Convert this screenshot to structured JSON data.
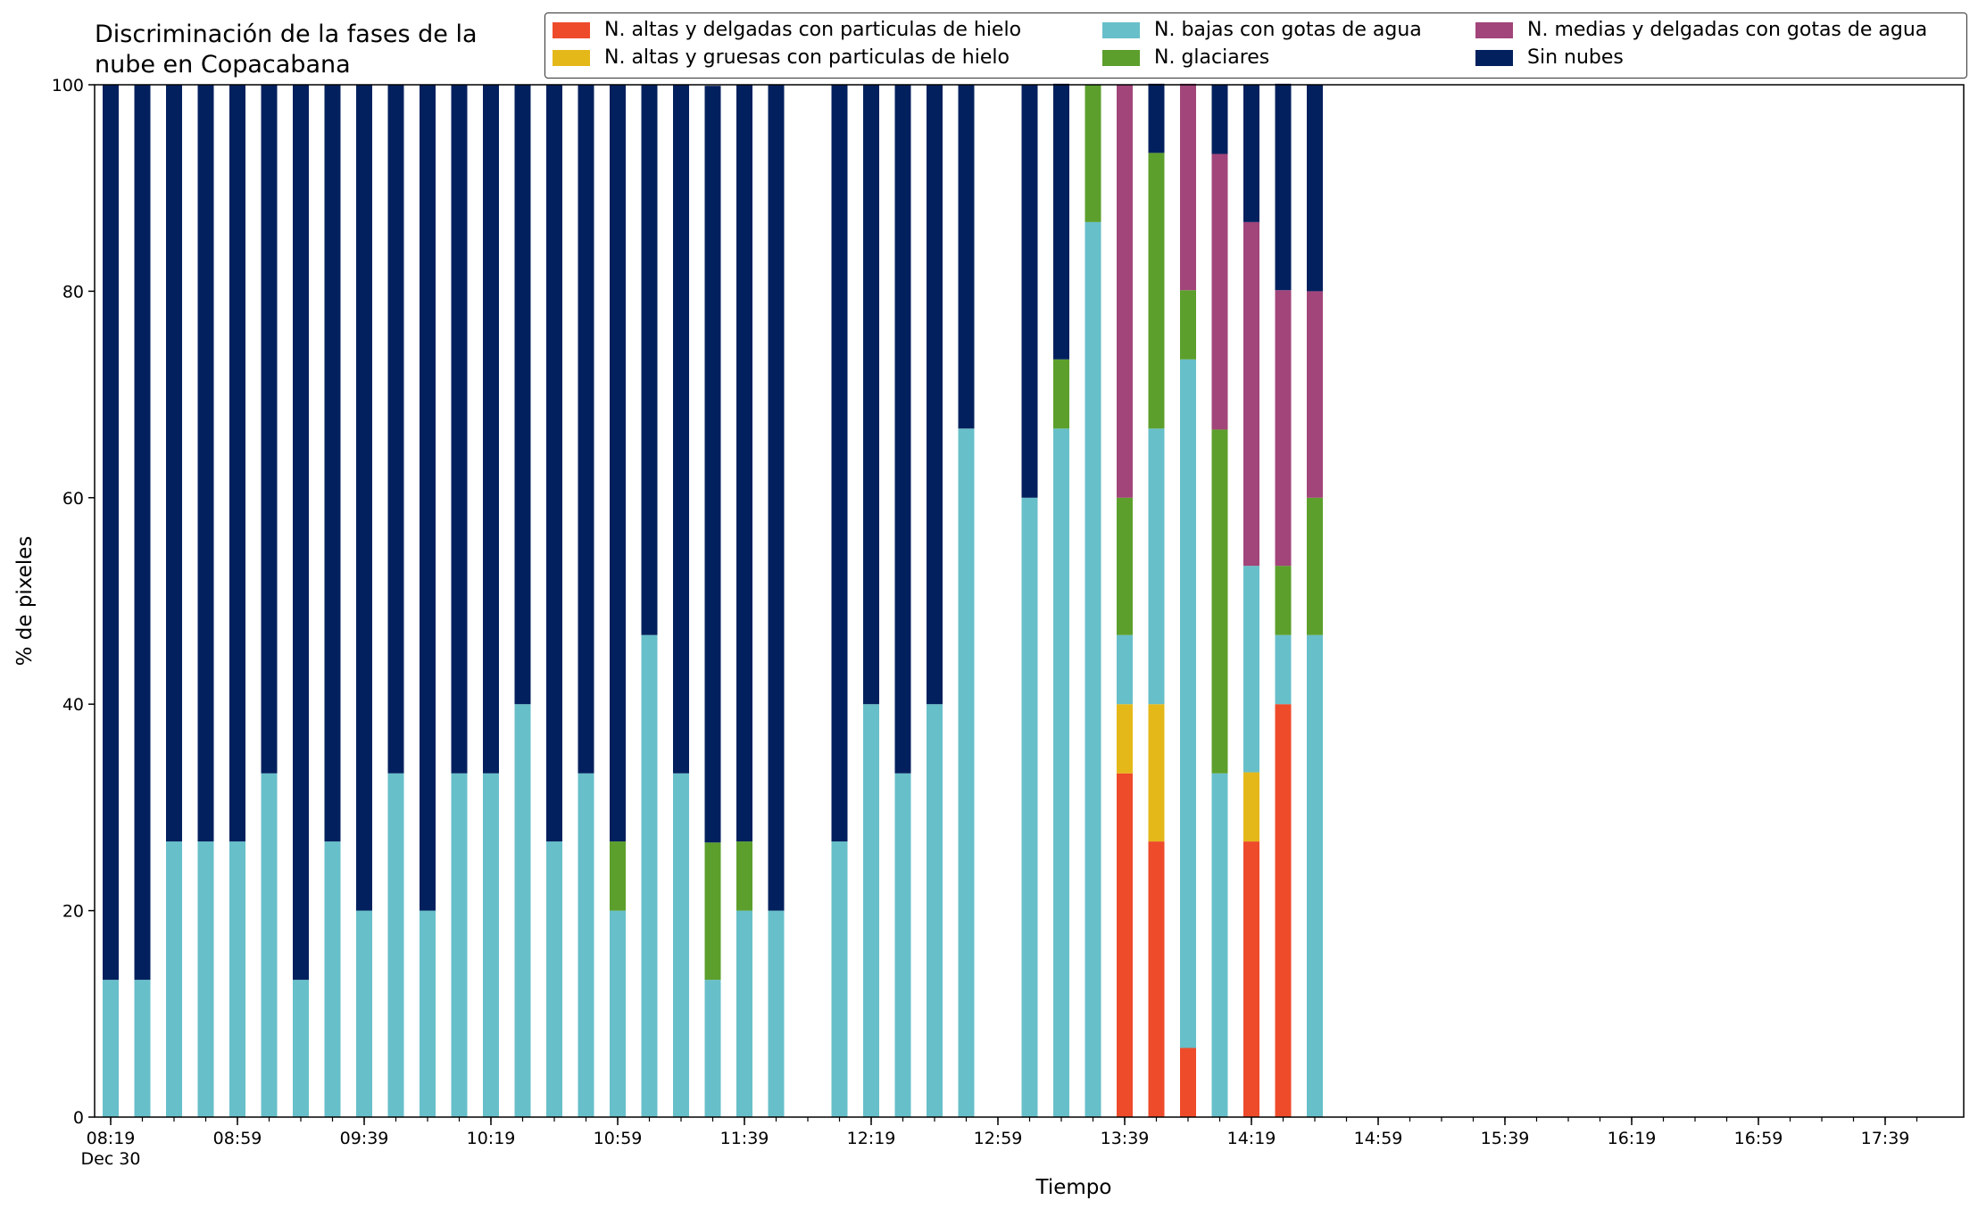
{
  "chart_data": {
    "type": "bar",
    "stacked": true,
    "title": "Discriminación de la fases de la\nnube en Copacabana",
    "xlabel": "Tiempo",
    "ylabel": "% de pixeles",
    "ylim": [
      0,
      100
    ],
    "yticks": [
      0,
      20,
      40,
      60,
      80,
      100
    ],
    "xticks": [
      "08:19\nDec 30",
      "08:59",
      "09:39",
      "10:19",
      "10:59",
      "11:39",
      "12:19",
      "12:59",
      "13:39",
      "14:19",
      "14:59",
      "15:39",
      "16:19",
      "16:59",
      "17:39"
    ],
    "x_interval_minutes": 10,
    "x_start": "08:19",
    "x_end": "17:49",
    "grid": false,
    "legend_position": "top-right",
    "categories": [
      "08:19",
      "08:29",
      "08:39",
      "08:49",
      "08:59",
      "09:09",
      "09:19",
      "09:29",
      "09:39",
      "09:49",
      "09:59",
      "10:09",
      "10:19",
      "10:29",
      "10:39",
      "10:49",
      "10:59",
      "11:09",
      "11:19",
      "11:29",
      "11:39",
      "11:49",
      "11:59",
      "12:09",
      "12:19",
      "12:29",
      "12:39",
      "12:49",
      "12:59",
      "13:09",
      "13:19",
      "13:29",
      "13:39",
      "13:49",
      "13:59",
      "14:09",
      "14:19",
      "14:29",
      "14:39"
    ],
    "series": [
      {
        "name": "N. altas y delgadas con particulas de hielo",
        "color": "#ee4b2b",
        "values": [
          0,
          0,
          0,
          0,
          0,
          0,
          0,
          0,
          0,
          0,
          0,
          0,
          0,
          0,
          0,
          0,
          0,
          0,
          0,
          0,
          0,
          0,
          0,
          0,
          0,
          0,
          0,
          0,
          0,
          0,
          0,
          0,
          33.3,
          26.7,
          6.7,
          0,
          26.7,
          40,
          0
        ]
      },
      {
        "name": "N. altas y gruesas con particulas de hielo",
        "color": "#e5b81a",
        "values": [
          0,
          0,
          0,
          0,
          0,
          0,
          0,
          0,
          0,
          0,
          0,
          0,
          0,
          0,
          0,
          0,
          0,
          0,
          0,
          0,
          0,
          0,
          0,
          0,
          0,
          0,
          0,
          0,
          0,
          0,
          0,
          0,
          6.7,
          13.3,
          0,
          0,
          6.7,
          0,
          0
        ]
      },
      {
        "name": "N. bajas con gotas de agua",
        "color": "#67bfc9",
        "values": [
          13.3,
          13.3,
          26.7,
          26.7,
          26.7,
          33.3,
          13.3,
          26.7,
          20,
          33.3,
          20,
          33.3,
          33.3,
          40,
          26.7,
          33.3,
          20,
          46.7,
          33.3,
          13.3,
          20,
          20,
          null,
          26.7,
          40,
          33.3,
          40,
          66.7,
          null,
          60,
          66.7,
          86.7,
          6.7,
          26.7,
          66.7,
          33.3,
          20,
          6.7,
          46.7
        ]
      },
      {
        "name": "N. glaciares",
        "color": "#5c9f2c",
        "values": [
          0,
          0,
          0,
          0,
          0,
          0,
          0,
          0,
          0,
          0,
          0,
          0,
          0,
          0,
          0,
          0,
          6.7,
          0,
          0,
          13.3,
          6.7,
          0,
          null,
          0,
          0,
          0,
          0,
          0,
          null,
          0,
          6.7,
          13.3,
          13.3,
          26.7,
          6.7,
          33.3,
          0,
          6.7,
          13.3
        ]
      },
      {
        "name": "N. medias y delgadas con gotas de agua",
        "color": "#a2457a",
        "values": [
          0,
          0,
          0,
          0,
          0,
          0,
          0,
          0,
          0,
          0,
          0,
          0,
          0,
          0,
          0,
          0,
          0,
          0,
          0,
          0,
          0,
          0,
          null,
          0,
          0,
          0,
          0,
          0,
          null,
          0,
          0,
          0,
          40,
          0,
          20,
          26.7,
          33.3,
          26.7,
          20
        ]
      },
      {
        "name": "Sin nubes",
        "color": "#03205e",
        "values": [
          86.7,
          86.7,
          73.3,
          73.3,
          73.3,
          66.7,
          86.7,
          73.3,
          80,
          66.7,
          80,
          66.7,
          66.7,
          60,
          73.3,
          66.7,
          73.3,
          53.3,
          66.7,
          73.3,
          73.3,
          80,
          null,
          73.3,
          60,
          66.7,
          60,
          33.3,
          null,
          40,
          26.7,
          0,
          0,
          6.7,
          0,
          6.7,
          13.3,
          20,
          20
        ]
      }
    ]
  }
}
